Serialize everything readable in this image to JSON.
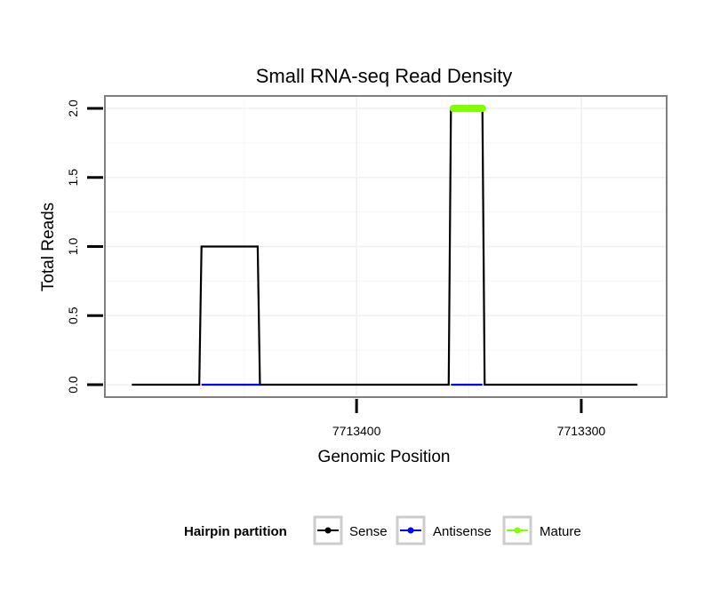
{
  "chart_data": {
    "type": "line",
    "title": "Small RNA-seq Read Density",
    "xlabel": "Genomic Position",
    "ylabel": "Total Reads",
    "x_reversed": true,
    "xlim": [
      7713512,
      7713262
    ],
    "ylim": [
      -0.09,
      2.09
    ],
    "x_ticks": [
      7713400,
      7713300
    ],
    "x_tick_labels": [
      "7713400",
      "7713300"
    ],
    "y_ticks": [
      0,
      0.5,
      1,
      1.5,
      2
    ],
    "y_tick_labels": [
      "0.0",
      "0.5",
      "1.0",
      "1.5",
      "2.0"
    ],
    "grid": true,
    "legend_position": "bottom",
    "series": [
      {
        "name": "Sense",
        "color": "#000000",
        "x": [
          7713500,
          7713470,
          7713469,
          7713444,
          7713443,
          7713359,
          7713358,
          7713344,
          7713343,
          7713275
        ],
        "y": [
          0,
          0,
          1,
          1,
          0,
          0,
          2,
          2,
          0,
          0
        ]
      },
      {
        "name": "Antisense",
        "color": "#0000ff",
        "x": [
          7713469,
          7713443
        ],
        "y": [
          0,
          0
        ],
        "x2": [
          7713358,
          7713344
        ],
        "y2": [
          0,
          0
        ]
      },
      {
        "name": "Mature",
        "color": "#7fff00",
        "x": [
          7713357,
          7713344
        ],
        "y": [
          2,
          2
        ]
      }
    ]
  },
  "legend": {
    "title": "Hairpin partition",
    "items": [
      {
        "label": "Sense",
        "color": "#000000"
      },
      {
        "label": "Antisense",
        "color": "#0000ff"
      },
      {
        "label": "Mature",
        "color": "#7fff00"
      }
    ]
  }
}
